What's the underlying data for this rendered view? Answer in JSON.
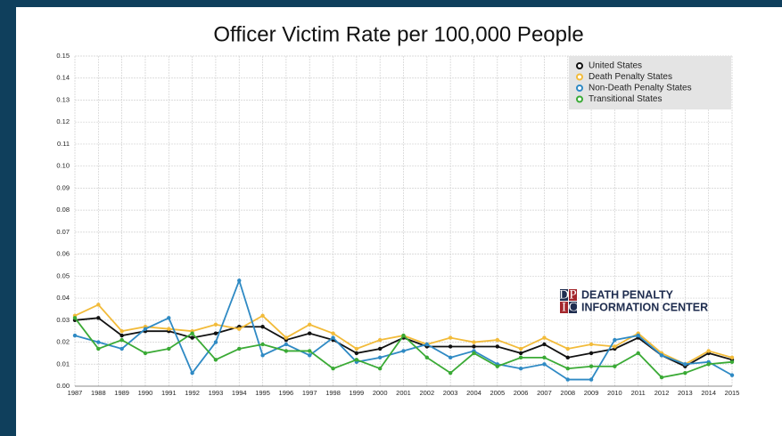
{
  "chart_data": {
    "type": "line",
    "title": "Officer Victim Rate per 100,000 People",
    "categories": [
      "1987",
      "1988",
      "1989",
      "1990",
      "1991",
      "1992",
      "1993",
      "1994",
      "1995",
      "1996",
      "1997",
      "1998",
      "1999",
      "2000",
      "2001",
      "2002",
      "2003",
      "2004",
      "2005",
      "2006",
      "2007",
      "2008",
      "2009",
      "2010",
      "2011",
      "2012",
      "2013",
      "2014",
      "2015"
    ],
    "series": [
      {
        "name": "United States",
        "color": "#111111",
        "values": [
          0.03,
          0.031,
          0.023,
          0.025,
          0.025,
          0.022,
          0.024,
          0.027,
          0.027,
          0.021,
          0.024,
          0.021,
          0.015,
          0.017,
          0.022,
          0.018,
          0.018,
          0.018,
          0.018,
          0.015,
          0.019,
          0.013,
          0.015,
          0.017,
          0.022,
          0.014,
          0.009,
          0.015,
          0.012
        ]
      },
      {
        "name": "Death Penalty States",
        "color": "#f2bb3a",
        "values": [
          0.032,
          0.037,
          0.025,
          0.027,
          0.026,
          0.025,
          0.028,
          0.026,
          0.032,
          0.022,
          0.028,
          0.024,
          0.017,
          0.021,
          0.023,
          0.019,
          0.022,
          0.02,
          0.021,
          0.017,
          0.022,
          0.017,
          0.019,
          0.018,
          0.024,
          0.015,
          0.01,
          0.016,
          0.013
        ]
      },
      {
        "name": "Non-Death Penalty States",
        "color": "#2f8ac4",
        "values": [
          0.023,
          0.02,
          0.017,
          0.026,
          0.031,
          0.006,
          0.02,
          0.048,
          0.014,
          0.019,
          0.014,
          0.022,
          0.011,
          0.013,
          0.016,
          0.019,
          0.013,
          0.016,
          0.01,
          0.008,
          0.01,
          0.003,
          0.003,
          0.021,
          0.023,
          0.014,
          0.01,
          0.011,
          0.005
        ]
      },
      {
        "name": "Transitional States",
        "color": "#3aaa35",
        "values": [
          0.031,
          0.017,
          0.021,
          0.015,
          0.017,
          0.024,
          0.012,
          0.017,
          0.019,
          0.016,
          0.016,
          0.008,
          0.012,
          0.008,
          0.023,
          0.013,
          0.006,
          0.015,
          0.009,
          0.013,
          0.013,
          0.008,
          0.009,
          0.009,
          0.015,
          0.004,
          0.006,
          0.01,
          0.011
        ]
      }
    ],
    "ylim": [
      0,
      0.15
    ],
    "yticks": [
      {
        "value": 0,
        "label": "0.00"
      },
      0.01,
      0.02,
      0.03,
      0.04,
      0.05,
      0.06,
      0.07,
      0.08,
      0.09,
      {
        "value": 0.1,
        "label": "0.10"
      },
      0.11,
      0.12,
      0.13,
      0.14,
      0.15
    ],
    "grid": true,
    "legend": "top-right"
  },
  "logo": {
    "letters": [
      "D",
      "P",
      "I",
      "C"
    ],
    "lines": [
      "DEATH PENALTY",
      "INFORMATION CENTER"
    ]
  }
}
